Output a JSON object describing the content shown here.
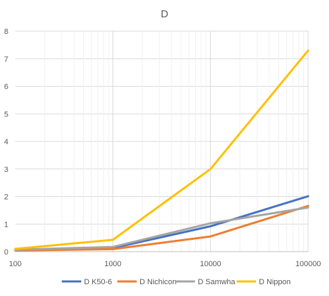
{
  "chart_data": {
    "type": "line",
    "title": "D",
    "xlabel": "",
    "ylabel": "",
    "x_scale": "log",
    "x": [
      100,
      1000,
      10000,
      100000
    ],
    "x_tick_labels": [
      "100",
      "1000",
      "10000",
      "100000"
    ],
    "xlim": [
      100,
      100000
    ],
    "ylim": [
      0,
      8
    ],
    "y_ticks": [
      0,
      1,
      2,
      3,
      4,
      5,
      6,
      7,
      8
    ],
    "grid": {
      "horizontal": true,
      "vertical": true
    },
    "legend_position": "bottom",
    "series": [
      {
        "name": "D K50-6",
        "color": "#4472C4",
        "values": [
          0.05,
          0.13,
          0.92,
          2.01
        ]
      },
      {
        "name": "D Nichicon",
        "color": "#ED7D31",
        "values": [
          0.04,
          0.09,
          0.55,
          1.66
        ]
      },
      {
        "name": "D Samwha",
        "color": "#A5A5A5",
        "values": [
          0.07,
          0.17,
          1.03,
          1.6
        ]
      },
      {
        "name": "D Nippon",
        "color": "#FFC000",
        "values": [
          0.1,
          0.43,
          3.0,
          7.3
        ]
      }
    ]
  }
}
